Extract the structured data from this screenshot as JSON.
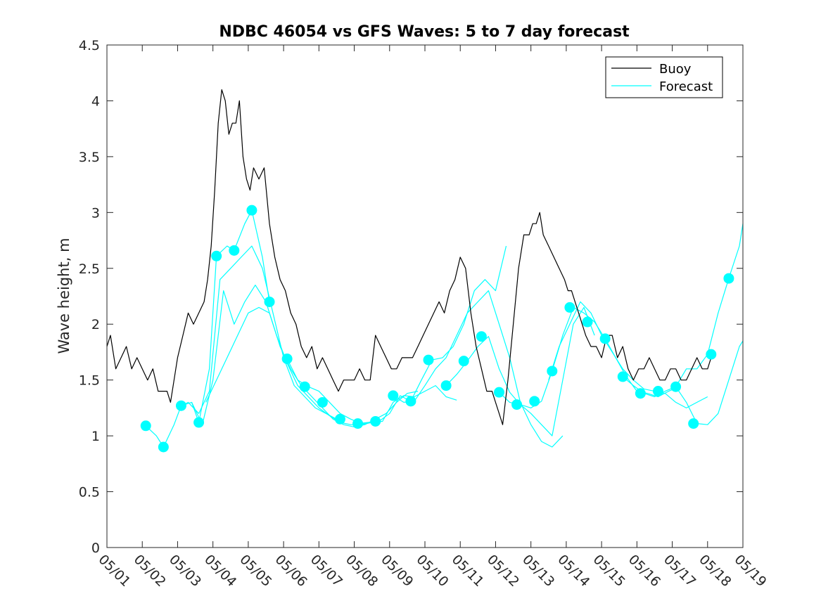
{
  "chart_data": {
    "type": "line",
    "title": "NDBC 46054 vs GFS Waves: 5 to 7 day forecast",
    "xlabel": "",
    "ylabel": "Wave height, m",
    "xlim": [
      1,
      19
    ],
    "ylim": [
      0,
      4.5
    ],
    "x_ticks": [
      "05/01",
      "05/02",
      "05/03",
      "05/04",
      "05/05",
      "05/06",
      "05/07",
      "05/08",
      "05/09",
      "05/10",
      "05/11",
      "05/12",
      "05/13",
      "05/14",
      "05/15",
      "05/16",
      "05/17",
      "05/18",
      "05/19"
    ],
    "y_ticks": [
      "0",
      "0.5",
      "1",
      "1.5",
      "2",
      "2.5",
      "3",
      "3.5",
      "4",
      "4.5"
    ],
    "grid": false,
    "legend_position": "top-right",
    "colors": {
      "buoy": "#000000",
      "forecast": "#00ffff",
      "axes": "#262626"
    },
    "series": [
      {
        "name": "Buoy",
        "x": [
          1.0,
          1.1,
          1.25,
          1.4,
          1.55,
          1.7,
          1.85,
          2.0,
          2.15,
          2.3,
          2.45,
          2.6,
          2.7,
          2.8,
          2.9,
          3.0,
          3.15,
          3.3,
          3.45,
          3.6,
          3.75,
          3.85,
          3.95,
          4.05,
          4.15,
          4.25,
          4.35,
          4.45,
          4.55,
          4.65,
          4.75,
          4.85,
          4.95,
          5.05,
          5.15,
          5.3,
          5.45,
          5.6,
          5.75,
          5.9,
          6.05,
          6.2,
          6.35,
          6.5,
          6.65,
          6.8,
          6.95,
          7.1,
          7.25,
          7.4,
          7.55,
          7.7,
          7.85,
          8.0,
          8.15,
          8.3,
          8.45,
          8.6,
          8.75,
          8.9,
          9.05,
          9.2,
          9.35,
          9.5,
          9.65,
          9.8,
          9.95,
          10.1,
          10.25,
          10.4,
          10.55,
          10.7,
          10.85,
          11.0,
          11.15,
          11.3,
          11.45,
          11.6,
          11.75,
          11.9,
          12.0,
          12.1,
          12.2,
          12.35,
          12.5,
          12.65,
          12.8,
          12.95,
          13.05,
          13.15,
          13.25,
          13.35,
          13.5,
          13.65,
          13.8,
          13.95,
          14.05,
          14.15,
          14.25,
          14.35,
          14.45,
          14.55,
          14.7,
          14.85,
          15.0,
          15.15,
          15.3,
          15.45,
          15.6,
          15.75,
          15.9,
          16.05,
          16.2,
          16.35,
          16.5,
          16.65,
          16.8,
          16.95,
          17.1,
          17.25,
          17.4,
          17.55,
          17.7,
          17.85,
          18.0,
          18.1
        ],
        "values": [
          1.8,
          1.9,
          1.6,
          1.7,
          1.8,
          1.6,
          1.7,
          1.6,
          1.5,
          1.6,
          1.4,
          1.4,
          1.4,
          1.3,
          1.5,
          1.7,
          1.9,
          2.1,
          2.0,
          2.1,
          2.2,
          2.4,
          2.7,
          3.2,
          3.8,
          4.1,
          4.0,
          3.7,
          3.8,
          3.8,
          4.0,
          3.5,
          3.3,
          3.2,
          3.4,
          3.3,
          3.4,
          2.9,
          2.6,
          2.4,
          2.3,
          2.1,
          2.0,
          1.8,
          1.7,
          1.8,
          1.6,
          1.7,
          1.6,
          1.5,
          1.4,
          1.5,
          1.5,
          1.5,
          1.6,
          1.5,
          1.5,
          1.9,
          1.8,
          1.7,
          1.6,
          1.6,
          1.7,
          1.7,
          1.7,
          1.8,
          1.9,
          2.0,
          2.1,
          2.2,
          2.1,
          2.3,
          2.4,
          2.6,
          2.5,
          2.1,
          1.8,
          1.6,
          1.4,
          1.4,
          1.3,
          1.2,
          1.1,
          1.5,
          2.0,
          2.5,
          2.8,
          2.8,
          2.9,
          2.9,
          3.0,
          2.8,
          2.7,
          2.6,
          2.5,
          2.4,
          2.3,
          2.3,
          2.2,
          2.1,
          2.0,
          1.9,
          1.8,
          1.8,
          1.7,
          1.9,
          1.9,
          1.7,
          1.8,
          1.6,
          1.5,
          1.6,
          1.6,
          1.7,
          1.6,
          1.5,
          1.5,
          1.6,
          1.6,
          1.5,
          1.5,
          1.6,
          1.7,
          1.6,
          1.6,
          1.7
        ]
      },
      {
        "name": "Forecast",
        "x": [
          2.1,
          2.6,
          3.1,
          3.6,
          4.1,
          4.6,
          5.1,
          5.6,
          6.1,
          6.6,
          7.1,
          7.6,
          8.1,
          8.6,
          9.1,
          9.6,
          10.1,
          10.6,
          11.1,
          11.6,
          12.1,
          12.6,
          13.1,
          13.6,
          14.1,
          14.6,
          15.1,
          15.6,
          16.1,
          16.6,
          17.1,
          17.6,
          18.1,
          18.6
        ],
        "values": [
          1.09,
          0.9,
          1.27,
          1.12,
          2.61,
          2.66,
          3.02,
          2.2,
          1.69,
          1.44,
          1.3,
          1.15,
          1.11,
          1.13,
          1.36,
          1.31,
          1.68,
          1.45,
          1.67,
          1.89,
          1.39,
          1.28,
          1.31,
          1.58,
          2.15,
          2.02,
          1.87,
          1.53,
          1.38,
          1.4,
          1.44,
          1.11,
          1.73,
          2.41
        ]
      }
    ],
    "forecast_runs": [
      {
        "x": [
          2.1,
          2.4,
          2.6,
          2.9,
          3.1,
          3.4,
          3.6,
          3.9,
          4.1,
          4.4,
          4.6,
          4.9,
          5.1,
          5.4,
          5.6
        ],
        "values": [
          1.09,
          1.0,
          0.9,
          1.1,
          1.27,
          1.3,
          1.12,
          1.6,
          2.61,
          2.7,
          2.66,
          2.9,
          3.02,
          2.6,
          2.2
        ]
      },
      {
        "x": [
          3.0,
          3.3,
          3.6,
          3.9,
          4.2,
          4.5,
          4.8,
          5.1,
          5.4,
          5.7,
          6.0,
          6.3,
          6.6,
          6.9,
          7.2,
          7.5
        ],
        "values": [
          1.25,
          1.3,
          1.2,
          1.4,
          2.4,
          2.5,
          2.6,
          2.7,
          2.5,
          2.1,
          1.7,
          1.45,
          1.35,
          1.25,
          1.2,
          1.15
        ]
      },
      {
        "x": [
          3.4,
          3.7,
          4.0,
          4.3,
          4.6,
          4.9,
          5.2,
          5.5,
          5.8,
          6.1,
          6.4,
          6.7,
          7.0,
          7.3,
          7.6,
          7.9,
          8.2,
          8.5
        ],
        "values": [
          1.3,
          1.1,
          1.5,
          2.3,
          2.0,
          2.2,
          2.35,
          2.2,
          1.9,
          1.65,
          1.45,
          1.35,
          1.25,
          1.18,
          1.12,
          1.1,
          1.1,
          1.12
        ]
      },
      {
        "x": [
          3.8,
          4.1,
          4.4,
          4.7,
          5.0,
          5.3,
          5.6,
          5.9,
          6.2,
          6.5,
          6.8,
          7.1,
          7.4,
          7.7,
          8.0,
          8.3,
          8.6,
          8.9,
          9.2,
          9.5,
          9.8
        ],
        "values": [
          1.3,
          1.5,
          1.7,
          1.9,
          2.1,
          2.15,
          2.1,
          1.8,
          1.6,
          1.45,
          1.35,
          1.25,
          1.15,
          1.1,
          1.08,
          1.1,
          1.15,
          1.2,
          1.3,
          1.38,
          1.4
        ]
      },
      {
        "x": [
          6.1,
          6.4,
          6.7,
          7.0,
          7.3,
          7.6,
          7.9,
          8.2,
          8.5,
          8.8,
          9.1,
          9.4,
          9.7,
          10.0,
          10.3,
          10.6,
          10.9
        ],
        "values": [
          1.69,
          1.5,
          1.44,
          1.4,
          1.3,
          1.2,
          1.15,
          1.11,
          1.12,
          1.13,
          1.3,
          1.36,
          1.35,
          1.4,
          1.45,
          1.35,
          1.32
        ]
      },
      {
        "x": [
          8.1,
          8.4,
          8.7,
          9.0,
          9.3,
          9.6,
          9.9,
          10.2,
          10.5,
          10.8,
          11.1,
          11.4,
          11.7,
          12.0,
          12.3
        ],
        "values": [
          1.11,
          1.12,
          1.13,
          1.2,
          1.36,
          1.31,
          1.5,
          1.68,
          1.7,
          1.8,
          2.0,
          2.3,
          2.4,
          2.3,
          2.7
        ]
      },
      {
        "x": [
          9.1,
          9.4,
          9.7,
          10.0,
          10.3,
          10.6,
          10.9,
          11.2,
          11.5,
          11.8,
          12.1,
          12.4,
          12.7,
          13.0,
          13.3,
          13.6,
          13.9
        ],
        "values": [
          1.36,
          1.3,
          1.31,
          1.45,
          1.6,
          1.7,
          1.9,
          2.1,
          2.2,
          2.3,
          2.0,
          1.7,
          1.3,
          1.1,
          0.95,
          0.9,
          1.0
        ]
      },
      {
        "x": [
          10.6,
          10.9,
          11.2,
          11.5,
          11.8,
          12.1,
          12.4,
          12.7,
          13.0,
          13.3,
          13.6,
          13.9,
          14.2,
          14.5,
          14.8
        ],
        "values": [
          1.45,
          1.55,
          1.67,
          1.8,
          1.89,
          1.6,
          1.39,
          1.28,
          1.2,
          1.1,
          1.0,
          1.5,
          2.0,
          2.15,
          1.9
        ]
      },
      {
        "x": [
          12.1,
          12.4,
          12.7,
          13.0,
          13.3,
          13.6,
          13.9,
          14.2,
          14.5,
          14.8,
          15.1,
          15.4,
          15.7,
          16.0,
          16.3,
          16.6,
          16.9,
          17.2
        ],
        "values": [
          1.39,
          1.3,
          1.28,
          1.25,
          1.31,
          1.58,
          1.9,
          2.15,
          2.1,
          2.02,
          1.87,
          1.7,
          1.53,
          1.4,
          1.38,
          1.35,
          1.4,
          1.44
        ]
      },
      {
        "x": [
          13.5,
          13.8,
          14.1,
          14.4,
          14.7,
          15.0,
          15.3,
          15.6,
          15.9,
          16.2,
          16.5,
          16.8,
          17.1,
          17.4,
          17.7,
          18.0
        ],
        "values": [
          1.5,
          1.8,
          2.0,
          2.2,
          2.1,
          1.9,
          1.75,
          1.6,
          1.5,
          1.42,
          1.4,
          1.38,
          1.3,
          1.25,
          1.3,
          1.35
        ]
      },
      {
        "x": [
          15.6,
          15.9,
          16.2,
          16.5,
          16.8,
          17.1,
          17.4,
          17.7,
          18.0,
          18.3,
          18.6,
          18.9,
          19.0
        ],
        "values": [
          1.53,
          1.45,
          1.38,
          1.35,
          1.4,
          1.44,
          1.3,
          1.11,
          1.1,
          1.2,
          1.5,
          1.8,
          1.85
        ]
      },
      {
        "x": [
          17.1,
          17.4,
          17.7,
          18.0,
          18.3,
          18.6,
          18.9,
          19.0
        ],
        "values": [
          1.44,
          1.6,
          1.6,
          1.73,
          2.1,
          2.41,
          2.7,
          2.9
        ]
      }
    ]
  }
}
